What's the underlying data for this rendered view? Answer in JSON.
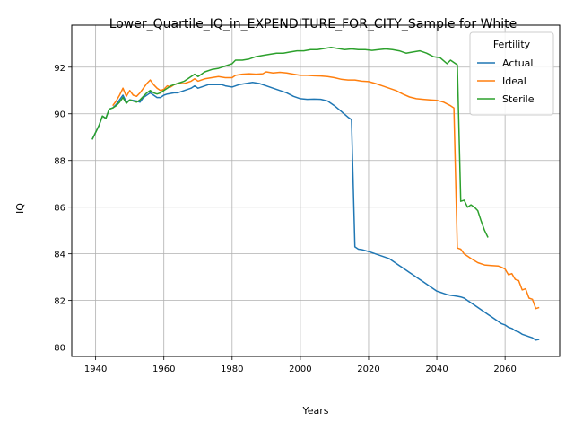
{
  "chart_data": {
    "type": "line",
    "title": "Lower_Quartile_IQ_in_EXPENDITURE_FOR_CITY_Sample for White",
    "xlabel": "Years",
    "ylabel": "IQ",
    "xlim": [
      1933,
      2076
    ],
    "ylim": [
      79.6,
      93.8
    ],
    "xticks": [
      1940,
      1960,
      1980,
      2000,
      2020,
      2040,
      2060
    ],
    "yticks": [
      80,
      82,
      84,
      86,
      88,
      90,
      92
    ],
    "grid": true,
    "legend": {
      "title": "Fertility",
      "placement": "upper-right"
    },
    "series": [
      {
        "name": "Actual",
        "color": "#1f77b4",
        "points": [
          [
            1939,
            88.9
          ],
          [
            1941,
            89.5
          ],
          [
            1942,
            89.9
          ],
          [
            1943,
            89.8
          ],
          [
            1944,
            90.2
          ],
          [
            1945,
            90.25
          ],
          [
            1946,
            90.4
          ],
          [
            1947,
            90.6
          ],
          [
            1948,
            90.8
          ],
          [
            1949,
            90.5
          ],
          [
            1950,
            90.6
          ],
          [
            1952,
            90.55
          ],
          [
            1953,
            90.5
          ],
          [
            1954,
            90.7
          ],
          [
            1955,
            90.8
          ],
          [
            1956,
            90.9
          ],
          [
            1957,
            90.8
          ],
          [
            1958,
            90.7
          ],
          [
            1959,
            90.7
          ],
          [
            1960,
            90.8
          ],
          [
            1961,
            90.85
          ],
          [
            1963,
            90.9
          ],
          [
            1964,
            90.9
          ],
          [
            1966,
            91.0
          ],
          [
            1968,
            91.1
          ],
          [
            1969,
            91.2
          ],
          [
            1970,
            91.1
          ],
          [
            1971,
            91.15
          ],
          [
            1973,
            91.25
          ],
          [
            1975,
            91.25
          ],
          [
            1977,
            91.25
          ],
          [
            1978,
            91.2
          ],
          [
            1980,
            91.15
          ],
          [
            1982,
            91.25
          ],
          [
            1984,
            91.3
          ],
          [
            1986,
            91.35
          ],
          [
            1988,
            91.3
          ],
          [
            1990,
            91.2
          ],
          [
            1992,
            91.1
          ],
          [
            1994,
            91.0
          ],
          [
            1996,
            90.9
          ],
          [
            1998,
            90.75
          ],
          [
            2000,
            90.65
          ],
          [
            2002,
            90.62
          ],
          [
            2004,
            90.63
          ],
          [
            2006,
            90.62
          ],
          [
            2008,
            90.55
          ],
          [
            2010,
            90.35
          ],
          [
            2012,
            90.1
          ],
          [
            2014,
            89.85
          ],
          [
            2015,
            89.75
          ],
          [
            2016,
            84.3
          ],
          [
            2017,
            84.2
          ],
          [
            2018,
            84.18
          ],
          [
            2020,
            84.1
          ],
          [
            2022,
            84.0
          ],
          [
            2024,
            83.9
          ],
          [
            2026,
            83.8
          ],
          [
            2027,
            83.7
          ],
          [
            2028,
            83.6
          ],
          [
            2029,
            83.5
          ],
          [
            2030,
            83.4
          ],
          [
            2031,
            83.3
          ],
          [
            2032,
            83.2
          ],
          [
            2033,
            83.1
          ],
          [
            2034,
            83.0
          ],
          [
            2035,
            82.9
          ],
          [
            2036,
            82.8
          ],
          [
            2037,
            82.7
          ],
          [
            2038,
            82.6
          ],
          [
            2039,
            82.5
          ],
          [
            2040,
            82.4
          ],
          [
            2041,
            82.35
          ],
          [
            2042,
            82.3
          ],
          [
            2043,
            82.25
          ],
          [
            2044,
            82.22
          ],
          [
            2045,
            82.2
          ],
          [
            2046,
            82.18
          ],
          [
            2047,
            82.15
          ],
          [
            2048,
            82.1
          ],
          [
            2049,
            82.0
          ],
          [
            2050,
            81.9
          ],
          [
            2051,
            81.8
          ],
          [
            2052,
            81.7
          ],
          [
            2053,
            81.6
          ],
          [
            2054,
            81.5
          ],
          [
            2055,
            81.4
          ],
          [
            2056,
            81.3
          ],
          [
            2057,
            81.2
          ],
          [
            2058,
            81.1
          ],
          [
            2059,
            81.0
          ],
          [
            2060,
            80.95
          ],
          [
            2061,
            80.85
          ],
          [
            2062,
            80.8
          ],
          [
            2063,
            80.7
          ],
          [
            2064,
            80.65
          ],
          [
            2065,
            80.55
          ],
          [
            2066,
            80.5
          ],
          [
            2067,
            80.45
          ],
          [
            2068,
            80.4
          ],
          [
            2069,
            80.3
          ],
          [
            2070,
            80.33
          ]
        ]
      },
      {
        "name": "Ideal",
        "color": "#ff7f0e",
        "points": [
          [
            1945,
            90.35
          ],
          [
            1946,
            90.55
          ],
          [
            1947,
            90.8
          ],
          [
            1948,
            91.1
          ],
          [
            1949,
            90.75
          ],
          [
            1950,
            91.0
          ],
          [
            1951,
            90.8
          ],
          [
            1952,
            90.75
          ],
          [
            1953,
            90.9
          ],
          [
            1954,
            91.1
          ],
          [
            1955,
            91.3
          ],
          [
            1956,
            91.45
          ],
          [
            1957,
            91.25
          ],
          [
            1958,
            91.1
          ],
          [
            1959,
            91.0
          ],
          [
            1960,
            91.05
          ],
          [
            1961,
            91.2
          ],
          [
            1962,
            91.15
          ],
          [
            1963,
            91.25
          ],
          [
            1964,
            91.3
          ],
          [
            1966,
            91.3
          ],
          [
            1968,
            91.4
          ],
          [
            1969,
            91.5
          ],
          [
            1970,
            91.4
          ],
          [
            1971,
            91.45
          ],
          [
            1972,
            91.5
          ],
          [
            1974,
            91.55
          ],
          [
            1976,
            91.6
          ],
          [
            1978,
            91.55
          ],
          [
            1980,
            91.55
          ],
          [
            1981,
            91.65
          ],
          [
            1983,
            91.7
          ],
          [
            1985,
            91.72
          ],
          [
            1987,
            91.7
          ],
          [
            1989,
            91.72
          ],
          [
            1990,
            91.8
          ],
          [
            1992,
            91.75
          ],
          [
            1994,
            91.78
          ],
          [
            1996,
            91.75
          ],
          [
            1998,
            91.7
          ],
          [
            2000,
            91.65
          ],
          [
            2002,
            91.65
          ],
          [
            2004,
            91.63
          ],
          [
            2006,
            91.62
          ],
          [
            2008,
            91.6
          ],
          [
            2010,
            91.55
          ],
          [
            2012,
            91.48
          ],
          [
            2014,
            91.45
          ],
          [
            2016,
            91.45
          ],
          [
            2018,
            91.4
          ],
          [
            2020,
            91.38
          ],
          [
            2022,
            91.3
          ],
          [
            2024,
            91.2
          ],
          [
            2026,
            91.1
          ],
          [
            2028,
            91.0
          ],
          [
            2030,
            90.85
          ],
          [
            2032,
            90.72
          ],
          [
            2034,
            90.65
          ],
          [
            2036,
            90.62
          ],
          [
            2038,
            90.6
          ],
          [
            2040,
            90.58
          ],
          [
            2042,
            90.5
          ],
          [
            2044,
            90.35
          ],
          [
            2045,
            90.25
          ],
          [
            2046,
            84.25
          ],
          [
            2047,
            84.2
          ],
          [
            2048,
            84.0
          ],
          [
            2049,
            83.9
          ],
          [
            2050,
            83.8
          ],
          [
            2052,
            83.62
          ],
          [
            2054,
            83.52
          ],
          [
            2056,
            83.5
          ],
          [
            2058,
            83.48
          ],
          [
            2059,
            83.42
          ],
          [
            2060,
            83.35
          ],
          [
            2061,
            83.1
          ],
          [
            2062,
            83.15
          ],
          [
            2063,
            82.9
          ],
          [
            2064,
            82.85
          ],
          [
            2065,
            82.45
          ],
          [
            2066,
            82.5
          ],
          [
            2067,
            82.1
          ],
          [
            2068,
            82.05
          ],
          [
            2069,
            81.65
          ],
          [
            2070,
            81.7
          ]
        ]
      },
      {
        "name": "Sterile",
        "color": "#2ca02c",
        "points": [
          [
            1939,
            88.9
          ],
          [
            1941,
            89.5
          ],
          [
            1942,
            89.9
          ],
          [
            1943,
            89.8
          ],
          [
            1944,
            90.2
          ],
          [
            1945,
            90.25
          ],
          [
            1946,
            90.35
          ],
          [
            1947,
            90.5
          ],
          [
            1948,
            90.7
          ],
          [
            1949,
            90.45
          ],
          [
            1950,
            90.6
          ],
          [
            1951,
            90.55
          ],
          [
            1952,
            90.5
          ],
          [
            1953,
            90.6
          ],
          [
            1954,
            90.75
          ],
          [
            1955,
            90.9
          ],
          [
            1956,
            91.0
          ],
          [
            1957,
            90.9
          ],
          [
            1958,
            90.85
          ],
          [
            1959,
            90.9
          ],
          [
            1960,
            91.0
          ],
          [
            1961,
            91.1
          ],
          [
            1962,
            91.2
          ],
          [
            1963,
            91.25
          ],
          [
            1964,
            91.3
          ],
          [
            1966,
            91.4
          ],
          [
            1968,
            91.6
          ],
          [
            1969,
            91.7
          ],
          [
            1970,
            91.6
          ],
          [
            1971,
            91.7
          ],
          [
            1972,
            91.8
          ],
          [
            1974,
            91.9
          ],
          [
            1976,
            91.95
          ],
          [
            1978,
            92.05
          ],
          [
            1980,
            92.15
          ],
          [
            1981,
            92.3
          ],
          [
            1983,
            92.3
          ],
          [
            1985,
            92.35
          ],
          [
            1987,
            92.45
          ],
          [
            1989,
            92.5
          ],
          [
            1991,
            92.55
          ],
          [
            1993,
            92.6
          ],
          [
            1995,
            92.6
          ],
          [
            1997,
            92.65
          ],
          [
            1999,
            92.7
          ],
          [
            2001,
            92.7
          ],
          [
            2003,
            92.75
          ],
          [
            2005,
            92.75
          ],
          [
            2007,
            92.8
          ],
          [
            2009,
            92.85
          ],
          [
            2011,
            92.8
          ],
          [
            2013,
            92.75
          ],
          [
            2015,
            92.78
          ],
          [
            2017,
            92.75
          ],
          [
            2019,
            92.75
          ],
          [
            2021,
            92.72
          ],
          [
            2023,
            92.75
          ],
          [
            2025,
            92.78
          ],
          [
            2027,
            92.75
          ],
          [
            2029,
            92.7
          ],
          [
            2031,
            92.6
          ],
          [
            2033,
            92.65
          ],
          [
            2035,
            92.7
          ],
          [
            2037,
            92.6
          ],
          [
            2039,
            92.45
          ],
          [
            2041,
            92.4
          ],
          [
            2043,
            92.15
          ],
          [
            2044,
            92.3
          ],
          [
            2045,
            92.2
          ],
          [
            2046,
            92.1
          ],
          [
            2047,
            86.25
          ],
          [
            2048,
            86.3
          ],
          [
            2049,
            86.0
          ],
          [
            2050,
            86.1
          ],
          [
            2051,
            86.0
          ],
          [
            2052,
            85.85
          ],
          [
            2053,
            85.4
          ],
          [
            2054,
            85.0
          ],
          [
            2055,
            84.7
          ]
        ]
      }
    ]
  }
}
